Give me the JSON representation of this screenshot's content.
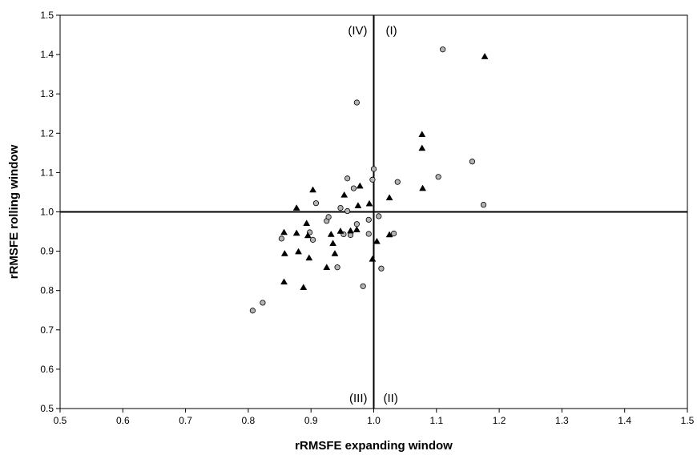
{
  "chart_data": {
    "type": "scatter",
    "title": "",
    "xlabel": "rRMSFE expanding window",
    "ylabel": "rRMSFE rolling window",
    "xlim": [
      0.5,
      1.5
    ],
    "ylim": [
      0.5,
      1.5
    ],
    "x_ticks": [
      "0.5",
      "0.6",
      "0.7",
      "0.8",
      "0.9",
      "1.0",
      "1.1",
      "1.2",
      "1.3",
      "1.4",
      "1.5"
    ],
    "y_ticks": [
      "0.5",
      "0.6",
      "0.7",
      "0.8",
      "0.9",
      "1.0",
      "1.1",
      "1.2",
      "1.3",
      "1.4",
      "1.5"
    ],
    "grid": false,
    "reference_lines": {
      "x": 1.0,
      "y": 1.0
    },
    "quadrant_labels": {
      "top_left": "(IV)",
      "top_right": "(I)",
      "bottom_left": "(III)",
      "bottom_right": "(II)"
    },
    "series": [
      {
        "marker": "circle",
        "color": "#b3b3b3",
        "points": [
          [
            0.807,
            0.749
          ],
          [
            0.823,
            0.769
          ],
          [
            0.853,
            0.932
          ],
          [
            0.898,
            0.948
          ],
          [
            0.903,
            0.929
          ],
          [
            0.908,
            1.022
          ],
          [
            0.925,
            0.977
          ],
          [
            0.928,
            0.987
          ],
          [
            0.942,
            0.859
          ],
          [
            0.947,
            1.01
          ],
          [
            0.952,
            0.943
          ],
          [
            0.958,
            1.002
          ],
          [
            0.958,
            1.085
          ],
          [
            0.963,
            0.941
          ],
          [
            0.968,
            1.06
          ],
          [
            0.973,
            1.278
          ],
          [
            0.973,
            0.969
          ],
          [
            0.983,
            0.811
          ],
          [
            0.992,
            0.98
          ],
          [
            0.992,
            0.944
          ],
          [
            1.0,
            1.109
          ],
          [
            0.998,
            1.082
          ],
          [
            1.008,
            0.989
          ],
          [
            1.012,
            0.856
          ],
          [
            1.032,
            0.945
          ],
          [
            1.038,
            1.076
          ],
          [
            1.103,
            1.089
          ],
          [
            1.11,
            1.413
          ],
          [
            1.157,
            1.128
          ],
          [
            1.175,
            1.018
          ]
        ]
      },
      {
        "marker": "triangle",
        "color": "#000000",
        "points": [
          [
            0.857,
            0.822
          ],
          [
            0.857,
            0.948
          ],
          [
            0.858,
            0.894
          ],
          [
            0.877,
            1.01
          ],
          [
            0.877,
            0.946
          ],
          [
            0.88,
            0.899
          ],
          [
            0.888,
            0.808
          ],
          [
            0.893,
            0.971
          ],
          [
            0.895,
            0.94
          ],
          [
            0.897,
            0.883
          ],
          [
            0.903,
            1.056
          ],
          [
            0.925,
            0.859
          ],
          [
            0.932,
            0.943
          ],
          [
            0.935,
            0.92
          ],
          [
            0.938,
            0.894
          ],
          [
            0.947,
            0.951
          ],
          [
            0.953,
            1.043
          ],
          [
            0.963,
            0.952
          ],
          [
            0.973,
            0.955
          ],
          [
            0.975,
            1.016
          ],
          [
            0.978,
            1.066
          ],
          [
            0.993,
            1.021
          ],
          [
            0.998,
            0.88
          ],
          [
            1.005,
            0.925
          ],
          [
            1.025,
            0.942
          ],
          [
            1.025,
            1.036
          ],
          [
            1.077,
            1.197
          ],
          [
            1.077,
            1.162
          ],
          [
            1.078,
            1.06
          ],
          [
            1.177,
            1.395
          ]
        ]
      }
    ]
  }
}
